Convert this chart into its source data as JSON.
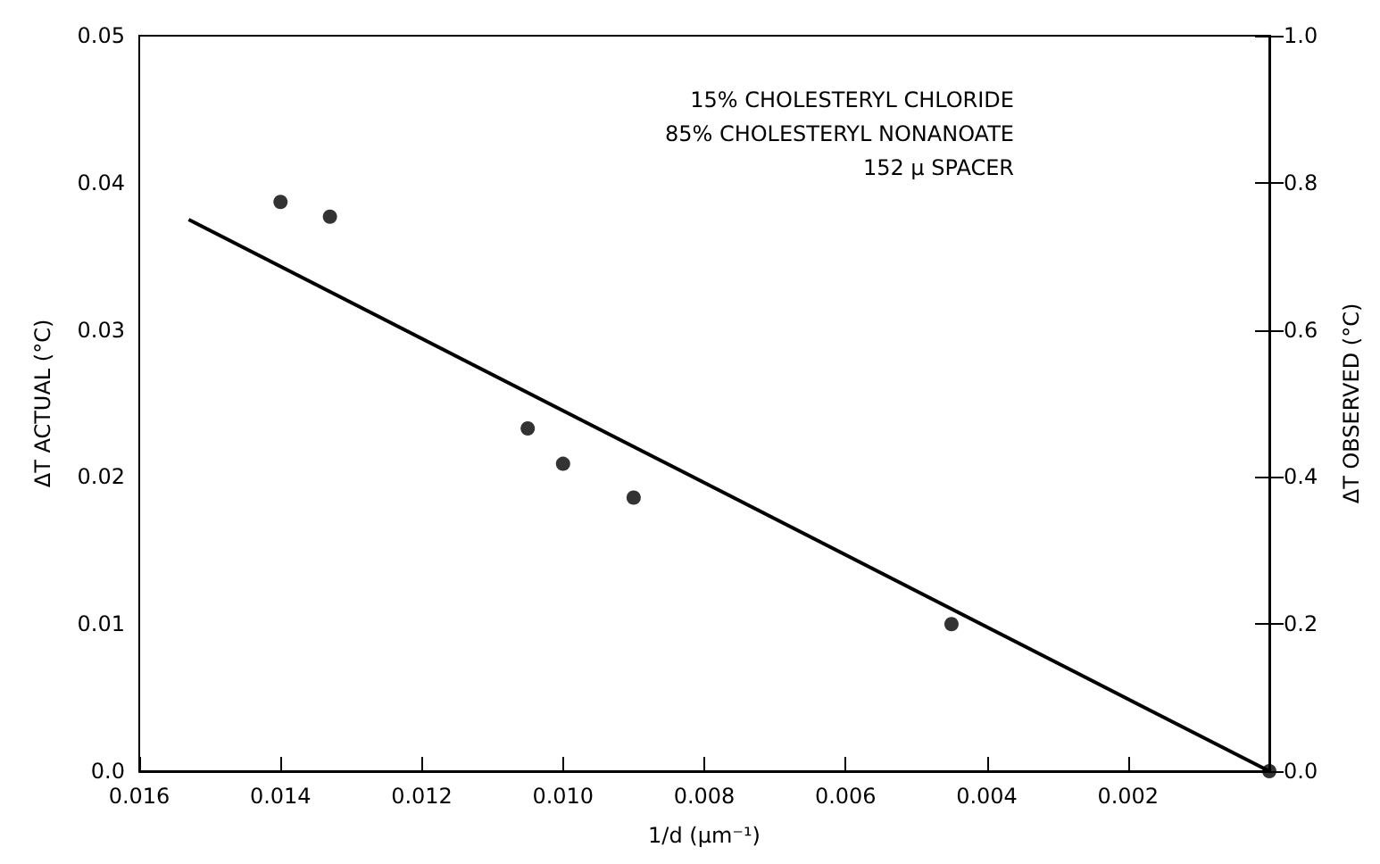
{
  "chart_data": {
    "type": "scatter",
    "xlabel": "1/d (μm⁻¹)",
    "ylabel": "ΔT ACTUAL (°C)",
    "y2label": "ΔT OBSERVED (°C)",
    "annotations": [
      "15% CHOLESTERYL CHLORIDE",
      "85% CHOLESTERYL NONANOATE",
      "152 μ SPACER"
    ],
    "series": [
      {
        "color": "#000000",
        "marker": "circle",
        "x": [
          0.014,
          0.0133,
          0.0105,
          0.01,
          0.009,
          0.0045,
          0
        ],
        "values": [
          0.0387,
          0.0377,
          0.0233,
          0.0209,
          0.0186,
          0.01,
          0
        ]
      },
      {
        "type": "line",
        "color": "#000000",
        "marker": "none",
        "line_style": "solid",
        "x": [
          0.0153,
          0
        ],
        "values": [
          0.0375,
          0
        ]
      }
    ],
    "xlim": [
      0.016,
      0
    ],
    "xticks": [
      {
        "value": 0.016,
        "label": "0.016"
      },
      {
        "value": 0.014,
        "label": "0.014"
      },
      {
        "value": 0.012,
        "label": "0.012"
      },
      {
        "value": 0.01,
        "label": "0.010"
      },
      {
        "value": 0.008,
        "label": "0.008"
      },
      {
        "value": 0.006,
        "label": "0.006"
      },
      {
        "value": 0.004,
        "label": "0.004"
      },
      {
        "value": 0.002,
        "label": "0.002"
      }
    ],
    "ylim": [
      0,
      0.05
    ],
    "yticks": [
      {
        "value": 0,
        "label": "0.0"
      },
      0.01,
      0.02,
      0.03,
      0.04,
      0.05
    ],
    "y2lim": [
      0,
      1
    ],
    "y2ticks": [
      {
        "value": 0,
        "label": "0.0"
      },
      0.2,
      0.4,
      0.6,
      0.8,
      {
        "value": 1,
        "label": "1.0"
      }
    ],
    "grid": false
  }
}
